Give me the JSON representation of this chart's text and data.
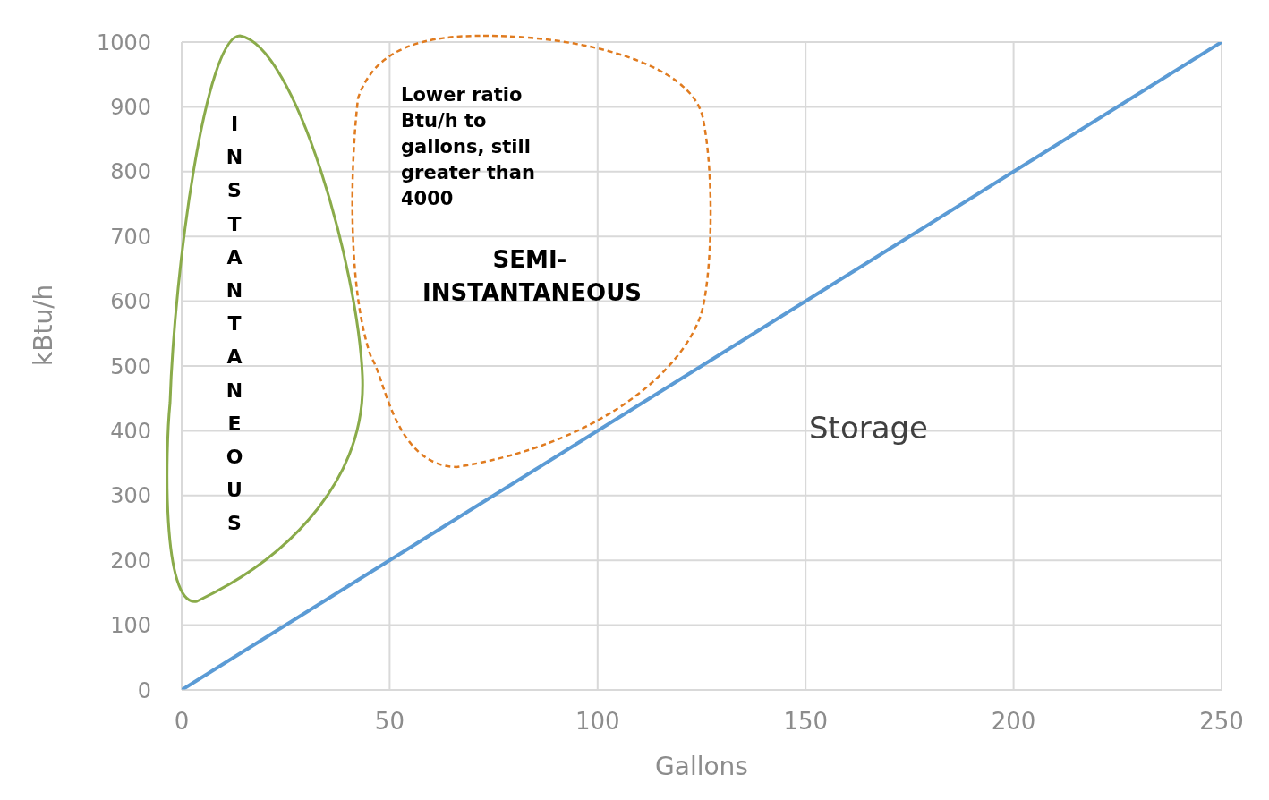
{
  "chart_data": {
    "type": "line",
    "xlabel": "Gallons",
    "ylabel": "kBtu/h",
    "x": [
      0,
      250
    ],
    "series": [
      {
        "color": "#5b9bd5",
        "values": [
          0,
          1000
        ]
      }
    ],
    "xlim": [
      0,
      250
    ],
    "xticks": [
      0,
      50,
      100,
      150,
      200,
      250
    ],
    "ylim": [
      0,
      1000
    ],
    "yticks": [
      0,
      100,
      200,
      300,
      400,
      500,
      600,
      700,
      800,
      900,
      1000
    ],
    "grid": true,
    "legend": false,
    "marker": "none",
    "line_style": "solid",
    "annotations": [
      "INSTANTANEOUS",
      "Lower ratio Btu/h to gallons, still greater than 4000",
      "SEMI-INSTANTANEOUS",
      "Storage"
    ]
  }
}
